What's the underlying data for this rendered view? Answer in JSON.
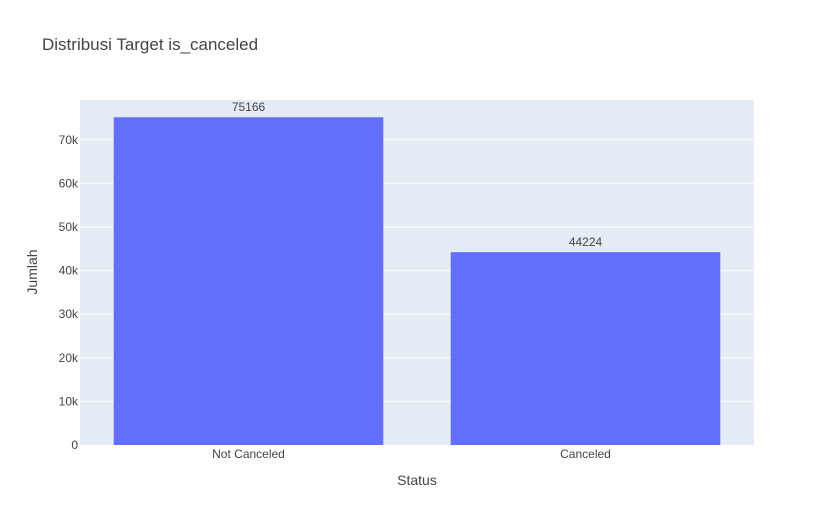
{
  "chart_data": {
    "type": "bar",
    "title": "Distribusi Target is_canceled",
    "xlabel": "Status",
    "ylabel": "Jumlah",
    "categories": [
      "Not Canceled",
      "Canceled"
    ],
    "values": [
      75166,
      44224
    ],
    "data_labels": [
      "75166",
      "44224"
    ],
    "ylim": [
      0,
      79122
    ],
    "yticks": [
      0,
      10000,
      20000,
      30000,
      40000,
      50000,
      60000,
      70000
    ],
    "ytick_labels": [
      "0",
      "10k",
      "20k",
      "30k",
      "40k",
      "50k",
      "60k",
      "70k"
    ],
    "grid": true,
    "bar_color": "#636efa",
    "plot_background": "#e5ecf6"
  }
}
